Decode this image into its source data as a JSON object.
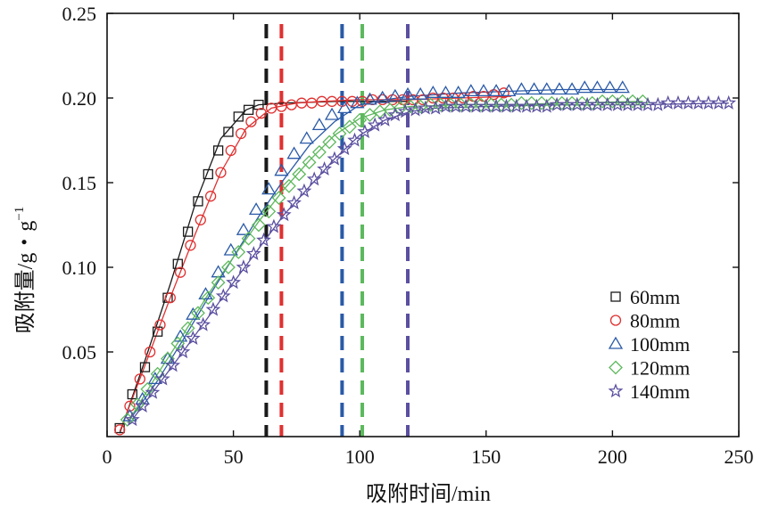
{
  "chart_data": {
    "type": "scatter",
    "title": "",
    "xlabel": "吸附时间/min",
    "ylabel_main": "吸附量/g・g",
    "ylabel_sup": "−1",
    "xlim": [
      0,
      250
    ],
    "ylim": [
      0,
      0.25
    ],
    "xticks": [
      0,
      50,
      100,
      150,
      200,
      250
    ],
    "xtick_labels": [
      "0",
      "50",
      "100",
      "150",
      "200",
      "250"
    ],
    "yticks": [
      0.05,
      0.1,
      0.15,
      0.2,
      0.25
    ],
    "ytick_labels": [
      "0.05",
      "0.10",
      "0.15",
      "0.20",
      "0.25"
    ],
    "legend_position": "bottom-right",
    "series": [
      {
        "name": "60mm",
        "marker": "square",
        "color": "#1a1a1a",
        "breakthrough_time": 63,
        "x": [
          5,
          10,
          15,
          20,
          24,
          28,
          32,
          36,
          40,
          44,
          48,
          52,
          56,
          60
        ],
        "y": [
          0.005,
          0.025,
          0.041,
          0.062,
          0.082,
          0.102,
          0.121,
          0.139,
          0.155,
          0.169,
          0.18,
          0.189,
          0.193,
          0.196
        ],
        "fit_x": [
          5,
          15,
          25,
          35,
          45,
          55,
          60,
          65,
          70,
          80,
          90,
          100,
          110,
          120
        ],
        "fit_y": [
          0.002,
          0.045,
          0.09,
          0.138,
          0.176,
          0.193,
          0.196,
          0.1965,
          0.197,
          0.1975,
          0.198,
          0.198,
          0.198,
          0.198
        ]
      },
      {
        "name": "80mm",
        "marker": "circle",
        "color": "#e03030",
        "breakthrough_time": 69,
        "x": [
          5,
          9,
          13,
          17,
          21,
          25,
          29,
          33,
          37,
          41,
          45,
          49,
          53,
          57,
          61,
          65,
          69,
          73,
          77,
          81,
          85,
          89,
          93,
          97,
          101,
          105,
          109,
          113,
          117,
          121,
          125,
          129,
          133,
          137,
          141,
          145,
          149,
          153,
          157
        ],
        "y": [
          0.004,
          0.018,
          0.034,
          0.05,
          0.066,
          0.082,
          0.097,
          0.113,
          0.128,
          0.142,
          0.156,
          0.169,
          0.179,
          0.186,
          0.191,
          0.194,
          0.195,
          0.196,
          0.197,
          0.197,
          0.198,
          0.198,
          0.198,
          0.198,
          0.198,
          0.199,
          0.199,
          0.199,
          0.199,
          0.199,
          0.199,
          0.2,
          0.2,
          0.2,
          0.2,
          0.201,
          0.201,
          0.202,
          0.203
        ],
        "fit_x": [
          5,
          15,
          25,
          35,
          45,
          55,
          65,
          75,
          85,
          100,
          120,
          140,
          160
        ],
        "fit_y": [
          0.003,
          0.042,
          0.082,
          0.12,
          0.156,
          0.182,
          0.194,
          0.197,
          0.198,
          0.199,
          0.199,
          0.2,
          0.201
        ]
      },
      {
        "name": "100mm",
        "marker": "triangle",
        "color": "#2a5aa8",
        "breakthrough_time": 93,
        "x": [
          9,
          14,
          19,
          24,
          29,
          34,
          39,
          44,
          49,
          54,
          59,
          64,
          69,
          74,
          79,
          84,
          89,
          94,
          99,
          104,
          109,
          114,
          119,
          124,
          129,
          134,
          139,
          144,
          149,
          154,
          159,
          164,
          169,
          174,
          179,
          184,
          189,
          194,
          199,
          204
        ],
        "y": [
          0.012,
          0.022,
          0.034,
          0.046,
          0.059,
          0.072,
          0.084,
          0.097,
          0.11,
          0.122,
          0.134,
          0.146,
          0.157,
          0.167,
          0.176,
          0.184,
          0.19,
          0.194,
          0.197,
          0.199,
          0.2,
          0.201,
          0.202,
          0.202,
          0.203,
          0.203,
          0.203,
          0.204,
          0.204,
          0.204,
          0.204,
          0.205,
          0.205,
          0.205,
          0.205,
          0.205,
          0.206,
          0.206,
          0.206,
          0.206
        ],
        "fit_x": [
          9,
          20,
          30,
          40,
          50,
          60,
          70,
          80,
          90,
          100,
          110,
          120,
          140,
          160,
          180,
          205
        ],
        "fit_y": [
          0.01,
          0.033,
          0.057,
          0.082,
          0.106,
          0.13,
          0.152,
          0.172,
          0.186,
          0.196,
          0.199,
          0.201,
          0.203,
          0.204,
          0.205,
          0.205
        ]
      },
      {
        "name": "120mm",
        "marker": "diamond",
        "color": "#5cb85c",
        "breakthrough_time": 101,
        "x": [
          8,
          12,
          16,
          20,
          24,
          28,
          32,
          36,
          40,
          44,
          48,
          52,
          56,
          60,
          64,
          68,
          72,
          76,
          80,
          84,
          88,
          92,
          96,
          100,
          104,
          108,
          112,
          116,
          120,
          124,
          128,
          132,
          136,
          140,
          144,
          148,
          152,
          156,
          160,
          164,
          168,
          172,
          176,
          180,
          184,
          188,
          192,
          196,
          200,
          204,
          208,
          212
        ],
        "y": [
          0.01,
          0.019,
          0.028,
          0.037,
          0.046,
          0.055,
          0.064,
          0.073,
          0.082,
          0.091,
          0.1,
          0.109,
          0.117,
          0.125,
          0.133,
          0.141,
          0.148,
          0.155,
          0.162,
          0.168,
          0.174,
          0.179,
          0.183,
          0.187,
          0.19,
          0.192,
          0.193,
          0.194,
          0.195,
          0.195,
          0.196,
          0.196,
          0.196,
          0.196,
          0.196,
          0.196,
          0.196,
          0.196,
          0.196,
          0.197,
          0.197,
          0.197,
          0.197,
          0.197,
          0.197,
          0.197,
          0.197,
          0.198,
          0.198,
          0.198,
          0.198,
          0.198
        ],
        "fit_x": [
          8,
          20,
          30,
          40,
          50,
          60,
          70,
          80,
          90,
          100,
          110,
          120,
          140,
          160,
          180,
          212
        ],
        "fit_y": [
          0.008,
          0.037,
          0.06,
          0.084,
          0.106,
          0.127,
          0.146,
          0.163,
          0.178,
          0.188,
          0.193,
          0.195,
          0.196,
          0.196,
          0.197,
          0.198
        ]
      },
      {
        "name": "140mm",
        "marker": "star",
        "color": "#5a4fa0",
        "breakthrough_time": 119,
        "x": [
          10,
          14,
          18,
          22,
          26,
          30,
          34,
          38,
          42,
          46,
          50,
          54,
          58,
          62,
          66,
          70,
          74,
          78,
          82,
          86,
          90,
          94,
          98,
          102,
          106,
          110,
          114,
          118,
          122,
          126,
          130,
          134,
          138,
          142,
          146,
          150,
          154,
          158,
          162,
          166,
          170,
          174,
          178,
          182,
          186,
          190,
          194,
          198,
          202,
          206,
          210,
          214,
          218,
          222,
          226,
          230,
          234,
          238,
          242,
          246
        ],
        "y": [
          0.01,
          0.018,
          0.026,
          0.034,
          0.042,
          0.05,
          0.058,
          0.066,
          0.075,
          0.083,
          0.091,
          0.1,
          0.108,
          0.116,
          0.124,
          0.131,
          0.138,
          0.145,
          0.152,
          0.158,
          0.164,
          0.17,
          0.175,
          0.18,
          0.184,
          0.187,
          0.19,
          0.192,
          0.193,
          0.194,
          0.194,
          0.195,
          0.195,
          0.195,
          0.195,
          0.195,
          0.195,
          0.195,
          0.195,
          0.195,
          0.195,
          0.195,
          0.196,
          0.196,
          0.196,
          0.196,
          0.196,
          0.196,
          0.196,
          0.196,
          0.196,
          0.196,
          0.196,
          0.197,
          0.197,
          0.197,
          0.197,
          0.197,
          0.197,
          0.197
        ],
        "fit_x": [
          10,
          30,
          50,
          70,
          90,
          100,
          110,
          120,
          130,
          150,
          180,
          210,
          246
        ],
        "fit_y": [
          0.01,
          0.05,
          0.091,
          0.131,
          0.164,
          0.178,
          0.187,
          0.192,
          0.194,
          0.195,
          0.196,
          0.196,
          0.197
        ]
      }
    ]
  }
}
